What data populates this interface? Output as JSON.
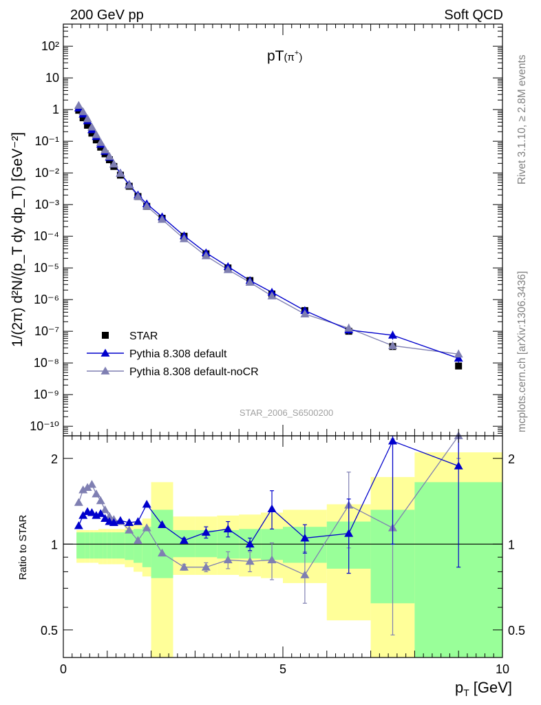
{
  "header": {
    "left": "200 GeV pp",
    "right": "Soft QCD"
  },
  "side_labels": {
    "rivet": "Rivet 3.1.10, ≥ 2.8M events",
    "mcplots": "mcplots.cern.ch [arXiv:1306.3436]"
  },
  "plot_title_main": "pT",
  "plot_title_paren": "(π",
  "plot_title_sup": "+",
  "plot_title_close": ")",
  "analysis_id": "STAR_2006_S6500200",
  "x_label": "p",
  "x_label_sub": "T",
  "x_label_unit": "[GeV]",
  "y_label_top": "1/(2π) d²N/(p_T dy dp_T) [GeV⁻²]",
  "y_label_ratio": "Ratio to STAR",
  "legend": [
    {
      "name": "STAR",
      "color": "#000000",
      "marker": "square"
    },
    {
      "name": "Pythia 8.308 default",
      "color": "#0000cc",
      "marker": "triangle"
    },
    {
      "name": "Pythia 8.308 default-noCR",
      "color": "#7f7fb2",
      "marker": "triangle"
    }
  ],
  "colors": {
    "band_inner": "#99ff99",
    "band_outer": "#ffff99",
    "default": "#0000cc",
    "nocr": "#7f7fb2"
  },
  "chart_data": [
    {
      "type": "scatter",
      "title": "pT(π+)",
      "xlabel": "p_T [GeV]",
      "ylabel": "1/(2π) d²N/(p_T dy dp_T) [GeV⁻²]",
      "xlim": [
        0,
        10
      ],
      "ylim": [
        5e-11,
        500
      ],
      "yscale": "log",
      "x_ticks": [
        0,
        5,
        10
      ],
      "y_tick_labels": [
        "10²",
        "10",
        "1",
        "10⁻¹",
        "10⁻²",
        "10⁻³",
        "10⁻⁴",
        "10⁻⁵",
        "10⁻⁶",
        "10⁻⁷",
        "10⁻⁸",
        "10⁻⁹",
        "10⁻¹⁰"
      ],
      "y_tick_values": [
        100,
        10,
        1,
        0.1,
        0.01,
        0.001,
        0.0001,
        1e-05,
        1e-06,
        1e-07,
        1e-08,
        1e-09,
        1e-10
      ],
      "x": [
        0.35,
        0.45,
        0.55,
        0.65,
        0.75,
        0.85,
        0.95,
        1.05,
        1.15,
        1.3,
        1.5,
        1.7,
        1.9,
        2.25,
        2.75,
        3.25,
        3.75,
        4.25,
        4.75,
        5.5,
        6.5,
        7.5,
        9.0
      ],
      "series": [
        {
          "name": "STAR",
          "values": [
            0.95,
            0.55,
            0.32,
            0.18,
            0.11,
            0.065,
            0.04,
            0.026,
            0.016,
            0.0085,
            0.0038,
            0.0018,
            0.00088,
            0.00037,
            0.0001,
            2.8e-05,
            1e-05,
            4e-06,
            1.5e-06,
            4.5e-07,
            1e-07,
            3.3e-08,
            8e-09
          ]
        },
        {
          "name": "Pythia 8.308 default",
          "values": [
            1.12,
            0.72,
            0.44,
            0.23,
            0.14,
            0.08,
            0.048,
            0.031,
            0.019,
            0.0098,
            0.0043,
            0.002,
            0.00105,
            0.00041,
            0.000103,
            3e-05,
            1.1e-05,
            4e-06,
            1.7e-06,
            4.5e-07,
            1.1e-07,
            7.5e-08,
            1.4e-08
          ]
        },
        {
          "name": "Pythia 8.308 default-noCR",
          "values": [
            1.35,
            0.85,
            0.51,
            0.28,
            0.16,
            0.091,
            0.053,
            0.033,
            0.019,
            0.0096,
            0.0041,
            0.0018,
            0.00089,
            0.00034,
            8.3e-05,
            2.4e-05,
            8.8e-06,
            3.5e-06,
            1.3e-06,
            3.5e-07,
            1.25e-07,
            3.5e-08,
            1.9e-08
          ]
        }
      ]
    },
    {
      "type": "scatter",
      "xlabel": "p_T [GeV]",
      "ylabel": "Ratio to STAR",
      "xlim": [
        0,
        10
      ],
      "ylim": [
        0.4,
        2.4
      ],
      "yscale": "log",
      "y_tick_labels": [
        "2",
        "1",
        "0.5"
      ],
      "y_tick_values": [
        2,
        1,
        0.5
      ],
      "bins": [
        [
          0.3,
          0.4
        ],
        [
          0.4,
          0.5
        ],
        [
          0.5,
          0.6
        ],
        [
          0.6,
          0.7
        ],
        [
          0.7,
          0.8
        ],
        [
          0.8,
          0.9
        ],
        [
          0.9,
          1.0
        ],
        [
          1.0,
          1.1
        ],
        [
          1.1,
          1.2
        ],
        [
          1.2,
          1.4
        ],
        [
          1.4,
          1.6
        ],
        [
          1.6,
          1.8
        ],
        [
          1.8,
          2.0
        ],
        [
          2.0,
          2.5
        ],
        [
          2.5,
          3.0
        ],
        [
          3.0,
          3.5
        ],
        [
          3.5,
          4.0
        ],
        [
          4.0,
          4.5
        ],
        [
          4.5,
          5.0
        ],
        [
          5.0,
          6.0
        ],
        [
          6.0,
          7.0
        ],
        [
          7.0,
          8.0
        ],
        [
          8.0,
          10.0
        ]
      ],
      "band_inner": [
        [
          0.89,
          1.1
        ],
        [
          0.89,
          1.1
        ],
        [
          0.89,
          1.1
        ],
        [
          0.89,
          1.1
        ],
        [
          0.89,
          1.1
        ],
        [
          0.89,
          1.1
        ],
        [
          0.89,
          1.1
        ],
        [
          0.89,
          1.1
        ],
        [
          0.89,
          1.1
        ],
        [
          0.89,
          1.1
        ],
        [
          0.88,
          1.12
        ],
        [
          0.86,
          1.13
        ],
        [
          0.83,
          1.15
        ],
        [
          0.76,
          1.32
        ],
        [
          0.9,
          1.12
        ],
        [
          0.9,
          1.12
        ],
        [
          0.89,
          1.12
        ],
        [
          0.89,
          1.13
        ],
        [
          0.88,
          1.13
        ],
        [
          0.86,
          1.15
        ],
        [
          0.82,
          1.2
        ],
        [
          0.62,
          1.32
        ],
        [
          0.39,
          1.65
        ]
      ],
      "band_outer": [
        [
          0.86,
          1.12
        ],
        [
          0.86,
          1.12
        ],
        [
          0.86,
          1.12
        ],
        [
          0.86,
          1.12
        ],
        [
          0.86,
          1.12
        ],
        [
          0.85,
          1.13
        ],
        [
          0.85,
          1.13
        ],
        [
          0.85,
          1.13
        ],
        [
          0.85,
          1.13
        ],
        [
          0.85,
          1.13
        ],
        [
          0.83,
          1.16
        ],
        [
          0.8,
          1.19
        ],
        [
          0.77,
          1.23
        ],
        [
          0.37,
          1.65
        ],
        [
          0.78,
          1.25
        ],
        [
          0.78,
          1.25
        ],
        [
          0.78,
          1.26
        ],
        [
          0.77,
          1.27
        ],
        [
          0.76,
          1.29
        ],
        [
          0.73,
          1.32
        ],
        [
          0.54,
          1.38
        ],
        [
          0.39,
          1.72
        ],
        [
          0.39,
          2.1
        ]
      ],
      "series": [
        {
          "name": "Pythia 8.308 default",
          "values": [
            1.16,
            1.26,
            1.3,
            1.29,
            1.26,
            1.28,
            1.23,
            1.2,
            1.19,
            1.21,
            1.19,
            1.2,
            1.38,
            1.17,
            1.03,
            1.1,
            1.13,
            1.0,
            1.33,
            1.05,
            1.09,
            2.3,
            1.88
          ],
          "err_low": [
            0,
            0,
            0,
            0,
            0,
            0,
            0,
            0,
            0,
            0,
            0,
            0,
            0,
            0,
            0.02,
            0.05,
            0.07,
            0.05,
            0.2,
            0.12,
            0.3,
            1.3,
            1.05
          ],
          "err_high": [
            0,
            0,
            0,
            0,
            0,
            0,
            0,
            0,
            0,
            0,
            0,
            0,
            0,
            0,
            0.02,
            0.05,
            0.07,
            0.05,
            0.21,
            0.12,
            0.35,
            1.5,
            1.4
          ]
        },
        {
          "name": "Pythia 8.308 default-noCR",
          "values": [
            1.4,
            1.55,
            1.58,
            1.62,
            1.5,
            1.42,
            1.32,
            1.25,
            1.22,
            1.2,
            1.12,
            1.03,
            1.14,
            0.93,
            0.83,
            0.83,
            0.88,
            0.87,
            0.88,
            0.78,
            1.37,
            1.14,
            2.4
          ],
          "err_low": [
            0,
            0,
            0,
            0,
            0,
            0,
            0,
            0,
            0,
            0,
            0,
            0,
            0,
            0,
            0.02,
            0.03,
            0.06,
            0.07,
            0.13,
            0.16,
            0.4,
            0.66,
            0.4
          ],
          "err_high": [
            0,
            0,
            0,
            0,
            0,
            0,
            0,
            0,
            0,
            0,
            0,
            0,
            0,
            0,
            0.02,
            0.03,
            0.06,
            0.07,
            0.13,
            0.16,
            0.42,
            1.2,
            0.3
          ]
        }
      ]
    }
  ]
}
